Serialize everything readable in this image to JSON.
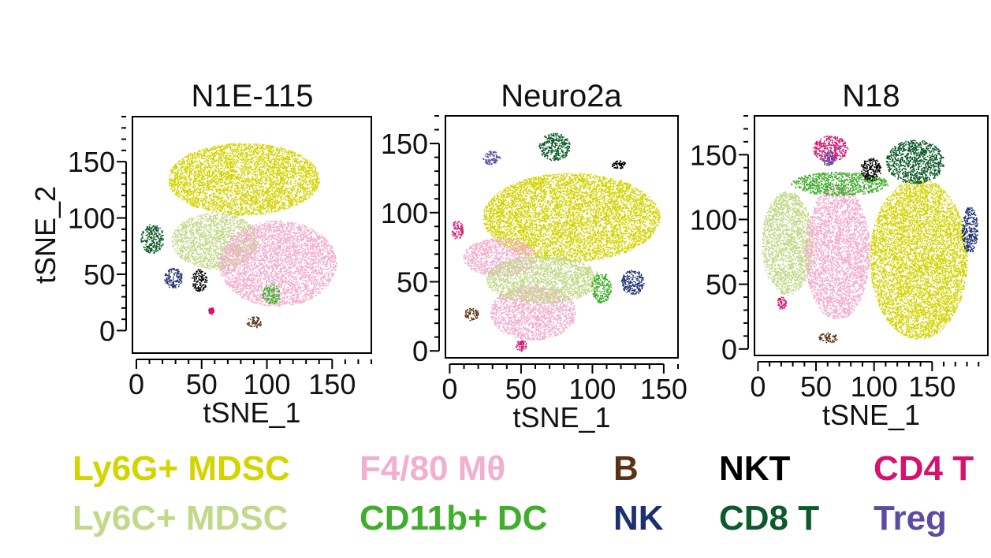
{
  "chart_data": [
    {
      "type": "scatter",
      "title": "N1E-115",
      "xlabel": "tSNE_1",
      "ylabel": "tSNE_2",
      "xlim": [
        -3,
        180
      ],
      "ylim": [
        -20,
        190
      ],
      "xticks": [
        0,
        50,
        100,
        150
      ],
      "yticks": [
        0,
        50,
        100,
        150
      ],
      "clusters": [
        {
          "population": "Ly6G+ MDSC",
          "center": [
            82,
            135
          ],
          "extent": [
            58,
            32
          ]
        },
        {
          "population": "Ly6C+ MDSC",
          "center": [
            60,
            80
          ],
          "extent": [
            33,
            25
          ]
        },
        {
          "population": "F4/80 Mθ",
          "center": [
            108,
            60
          ],
          "extent": [
            45,
            38
          ]
        },
        {
          "population": "CD11b+ DC",
          "center": [
            103,
            33
          ],
          "extent": [
            7,
            9
          ]
        },
        {
          "population": "CD8 T",
          "center": [
            12,
            82
          ],
          "extent": [
            9,
            13
          ]
        },
        {
          "population": "NK",
          "center": [
            28,
            47
          ],
          "extent": [
            7,
            9
          ]
        },
        {
          "population": "NKT",
          "center": [
            48,
            45
          ],
          "extent": [
            6,
            10
          ]
        },
        {
          "population": "CD4 T",
          "center": [
            57,
            18
          ],
          "extent": [
            2,
            3
          ]
        },
        {
          "population": "B",
          "center": [
            90,
            8
          ],
          "extent": [
            6,
            5
          ]
        }
      ]
    },
    {
      "type": "scatter",
      "title": "Neuro2a",
      "xlabel": "tSNE_1",
      "ylabel": "",
      "xlim": [
        -3,
        160
      ],
      "ylim": [
        -5,
        170
      ],
      "xticks": [
        0,
        50,
        100,
        150
      ],
      "yticks": [
        0,
        50,
        100,
        150
      ],
      "clusters": [
        {
          "population": "Ly6G+ MDSC",
          "center": [
            85,
            97
          ],
          "extent": [
            62,
            32
          ]
        },
        {
          "population": "F4/80 Mθ",
          "center": [
            35,
            68
          ],
          "extent": [
            26,
            14
          ]
        },
        {
          "population": "F4/80 Mθ",
          "center": [
            58,
            28
          ],
          "extent": [
            30,
            20
          ]
        },
        {
          "population": "Ly6C+ MDSC",
          "center": [
            65,
            52
          ],
          "extent": [
            40,
            17
          ]
        },
        {
          "population": "CD11b+ DC",
          "center": [
            106,
            46
          ],
          "extent": [
            7,
            11
          ]
        },
        {
          "population": "NK",
          "center": [
            128,
            50
          ],
          "extent": [
            8,
            9
          ]
        },
        {
          "population": "CD8 T",
          "center": [
            73,
            148
          ],
          "extent": [
            11,
            10
          ]
        },
        {
          "population": "Treg",
          "center": [
            29,
            140
          ],
          "extent": [
            6,
            5
          ]
        },
        {
          "population": "NKT",
          "center": [
            118,
            135
          ],
          "extent": [
            5,
            3
          ]
        },
        {
          "population": "CD4 T",
          "center": [
            5,
            88
          ],
          "extent": [
            4,
            7
          ]
        },
        {
          "population": "B",
          "center": [
            15,
            27
          ],
          "extent": [
            5,
            5
          ]
        },
        {
          "population": "CD4 T",
          "center": [
            50,
            4
          ],
          "extent": [
            4,
            4
          ]
        }
      ]
    },
    {
      "type": "scatter",
      "title": "N18",
      "xlabel": "tSNE_1",
      "ylabel": "",
      "xlim": [
        -3,
        198
      ],
      "ylim": [
        -5,
        180
      ],
      "xticks": [
        0,
        50,
        100,
        150
      ],
      "yticks": [
        0,
        50,
        100,
        150
      ],
      "clusters": [
        {
          "population": "Ly6C+ MDSC",
          "center": [
            25,
            82
          ],
          "extent": [
            22,
            40
          ]
        },
        {
          "population": "F4/80 Mθ",
          "center": [
            68,
            75
          ],
          "extent": [
            28,
            52
          ]
        },
        {
          "population": "Ly6G+ MDSC",
          "center": [
            138,
            70
          ],
          "extent": [
            42,
            62
          ]
        },
        {
          "population": "CD11b+ DC",
          "center": [
            70,
            128
          ],
          "extent": [
            42,
            9
          ]
        },
        {
          "population": "CD8 T",
          "center": [
            135,
            145
          ],
          "extent": [
            25,
            17
          ]
        },
        {
          "population": "NKT",
          "center": [
            97,
            139
          ],
          "extent": [
            9,
            9
          ]
        },
        {
          "population": "CD4 T",
          "center": [
            62,
            155
          ],
          "extent": [
            15,
            10
          ]
        },
        {
          "population": "Treg",
          "center": [
            60,
            148
          ],
          "extent": [
            6,
            6
          ]
        },
        {
          "population": "NK",
          "center": [
            182,
            92
          ],
          "extent": [
            7,
            18
          ]
        },
        {
          "population": "CD4 T",
          "center": [
            20,
            36
          ],
          "extent": [
            4,
            5
          ]
        },
        {
          "population": "B",
          "center": [
            60,
            9
          ],
          "extent": [
            8,
            4
          ]
        }
      ]
    }
  ],
  "legend": [
    {
      "label": "Ly6G+ MDSC",
      "color": "#d4d400"
    },
    {
      "label": "Ly6C+ MDSC",
      "color": "#c2d98a"
    },
    {
      "label": "F4/80 Mθ",
      "color": "#f2afcf"
    },
    {
      "label": "CD11b+ DC",
      "color": "#3fae2a"
    },
    {
      "label": "B",
      "color": "#5a3215"
    },
    {
      "label": "NK",
      "color": "#1c2f6e"
    },
    {
      "label": "NKT",
      "color": "#000000"
    },
    {
      "label": "CD8 T",
      "color": "#0d5a2a"
    },
    {
      "label": "CD4 T",
      "color": "#d6126f"
    },
    {
      "label": "Treg",
      "color": "#5b4ba2"
    }
  ]
}
